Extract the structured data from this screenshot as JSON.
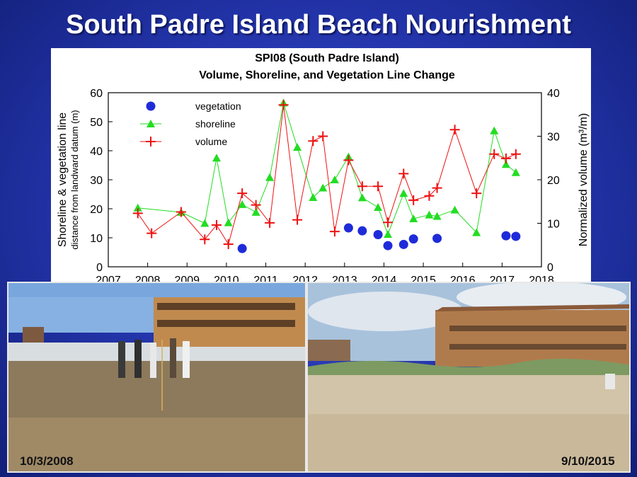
{
  "slide": {
    "title": "South Padre Island Beach Nourishment"
  },
  "photos": {
    "left": {
      "date": "10/3/2008"
    },
    "right": {
      "date": "9/10/2015"
    }
  },
  "chart_data": {
    "type": "scatter",
    "title": "SPI08 (South Padre Island)",
    "subtitle": "Volume, Shoreline, and Vegetation Line Change",
    "xlabel": "",
    "xlim": [
      2007,
      2018
    ],
    "xticks": [
      2007,
      2008,
      2009,
      2010,
      2011,
      2012,
      2013,
      2014,
      2015,
      2016,
      2017,
      2018
    ],
    "ylabel_left_line1": "Shoreline & vegetation line",
    "ylabel_left_line2": "distance from landward datum (m)",
    "ylim_left": [
      0,
      60
    ],
    "yticks_left": [
      0,
      10,
      20,
      30,
      40,
      50,
      60
    ],
    "ylabel_right": "Normalized volume (m³/m)",
    "ylim_right": [
      0,
      40
    ],
    "yticks_right": [
      0,
      10,
      20,
      30,
      40
    ],
    "legend_position": "top-left",
    "series": [
      {
        "name": "vegetation",
        "axis": "left",
        "marker": "circle",
        "color": "#1f2bd9",
        "x": [
          2010.4,
          2013.1,
          2013.45,
          2013.85,
          2014.1,
          2014.5,
          2014.75,
          2015.35,
          2017.1,
          2017.35
        ],
        "y": [
          6.3,
          13.4,
          12.4,
          11.1,
          7.3,
          7.7,
          9.6,
          9.8,
          10.7,
          10.5
        ]
      },
      {
        "name": "shoreline",
        "axis": "left",
        "marker": "triangle",
        "color": "#22dd22",
        "x": [
          2007.75,
          2008.85,
          2009.45,
          2009.75,
          2010.05,
          2010.4,
          2010.75,
          2011.1,
          2011.45,
          2011.8,
          2012.2,
          2012.45,
          2012.75,
          2013.1,
          2013.45,
          2013.85,
          2014.1,
          2014.5,
          2014.75,
          2015.15,
          2015.35,
          2015.8,
          2016.35,
          2016.8,
          2017.1,
          2017.35
        ],
        "y": [
          20.3,
          18.8,
          15,
          37.5,
          15.2,
          21.5,
          18.8,
          30.8,
          56.5,
          41.2,
          23.9,
          27.2,
          30,
          37.9,
          23.8,
          20.5,
          11.2,
          25.3,
          16.6,
          17.9,
          17.4,
          19.6,
          11.8,
          46.9,
          35.3,
          32.5
        ]
      },
      {
        "name": "volume",
        "axis": "right",
        "marker": "plus",
        "color": "#ee1111",
        "x": [
          2007.75,
          2008.1,
          2008.85,
          2009.45,
          2009.75,
          2010.05,
          2010.4,
          2010.75,
          2011.1,
          2011.45,
          2011.8,
          2012.2,
          2012.45,
          2012.75,
          2013.1,
          2013.45,
          2013.85,
          2014.1,
          2014.5,
          2014.75,
          2015.15,
          2015.35,
          2015.8,
          2016.35,
          2016.8,
          2017.1,
          2017.35
        ],
        "y": [
          12.3,
          7.7,
          12.6,
          6.3,
          9.6,
          5.2,
          16.9,
          14.2,
          10.1,
          37.2,
          10.8,
          28.9,
          30,
          8.1,
          24.5,
          18.5,
          18.5,
          10.2,
          21.4,
          15.3,
          16.3,
          18.1,
          31.5,
          16.9,
          25.9,
          24.9,
          25.9
        ]
      }
    ]
  }
}
